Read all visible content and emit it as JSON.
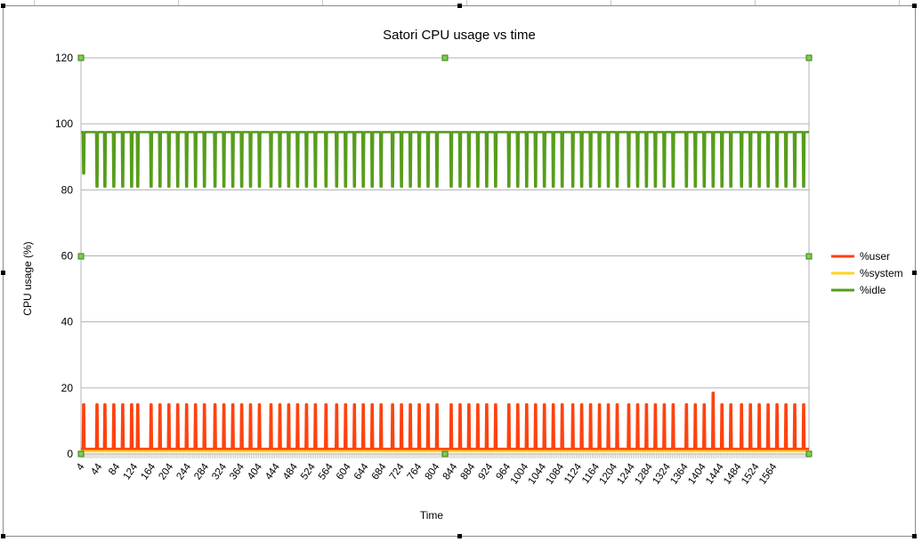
{
  "chart_data": {
    "type": "line",
    "title": "Satori CPU usage vs time",
    "xlabel": "Time",
    "ylabel": "CPU usage (%)",
    "ylim": [
      0,
      120
    ],
    "yticks": [
      0,
      20,
      40,
      60,
      80,
      100,
      120
    ],
    "xlim": [
      4,
      1644
    ],
    "xticks": [
      4,
      44,
      84,
      124,
      164,
      204,
      244,
      284,
      324,
      364,
      404,
      444,
      484,
      524,
      564,
      604,
      644,
      684,
      724,
      764,
      804,
      844,
      884,
      924,
      964,
      1004,
      1044,
      1084,
      1124,
      1164,
      1204,
      1244,
      1284,
      1324,
      1364,
      1404,
      1444,
      1484,
      1524,
      1564
    ],
    "grid": true,
    "legend_position": "right",
    "description_pattern": "periodic spikes every ~20 time units",
    "series": [
      {
        "name": "%user",
        "color": "#ff420e",
        "baseline": 1.5,
        "spike_value": 15,
        "spike_times": [
          10,
          40,
          58,
          78,
          98,
          118,
          132,
          162,
          182,
          202,
          222,
          242,
          262,
          282,
          306,
          326,
          346,
          366,
          386,
          406,
          432,
          452,
          472,
          492,
          512,
          532,
          556,
          580,
          600,
          620,
          640,
          660,
          680,
          706,
          726,
          746,
          766,
          786,
          806,
          838,
          858,
          878,
          898,
          918,
          938,
          968,
          988,
          1008,
          1028,
          1048,
          1068,
          1088,
          1112,
          1132,
          1152,
          1172,
          1192,
          1212,
          1238,
          1258,
          1278,
          1298,
          1318,
          1338,
          1368,
          1388,
          1408,
          1428,
          1448,
          1468,
          1492,
          1512,
          1532,
          1552,
          1572,
          1592,
          1612,
          1632
        ],
        "special_points": [
          {
            "x": 1150,
            "y": 18
          },
          {
            "x": 1428,
            "y": 18.5
          },
          {
            "x": 310,
            "y": 10.5
          },
          {
            "x": 734,
            "y": 14
          }
        ]
      },
      {
        "name": "%system",
        "color": "#ffd320",
        "baseline": 0.8,
        "spike_value": 4
      },
      {
        "name": "%idle",
        "color": "#579d1c",
        "baseline": 97.5,
        "dip_value": 81,
        "special_points": [
          {
            "x": 10,
            "y": 85
          },
          {
            "x": 16,
            "y": 83
          },
          {
            "x": 310,
            "y": 89
          },
          {
            "x": 734,
            "y": 85
          }
        ]
      }
    ]
  }
}
